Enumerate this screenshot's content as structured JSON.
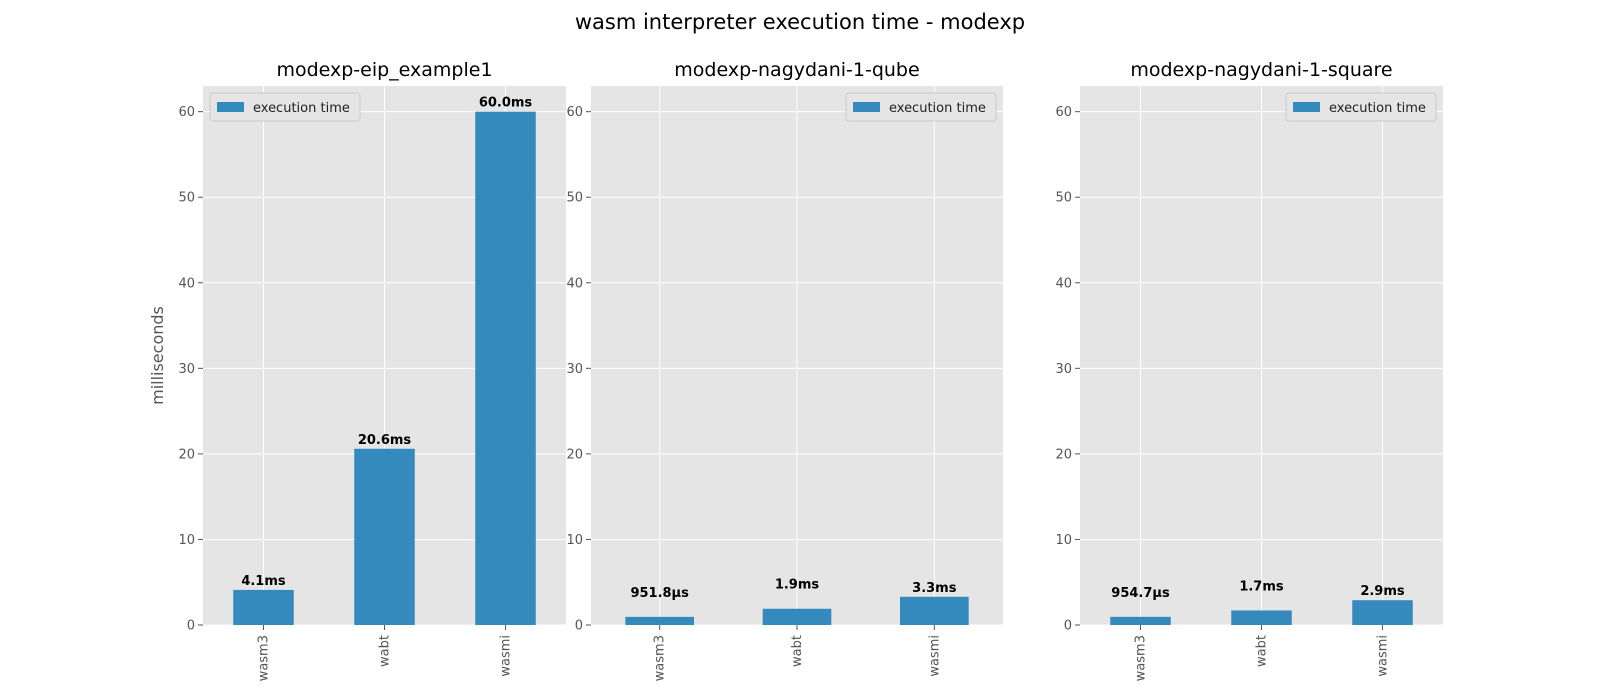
{
  "figure": {
    "title": "wasm interpreter execution time - modexp"
  },
  "style": {
    "bar_color": "#348ABD",
    "panel_bg": "#E5E5E5",
    "grid_color": "#FFFFFF",
    "tick_color": "#555555"
  },
  "chart_data": [
    {
      "type": "bar",
      "title": "modexp-eip_example1",
      "ylabel": "milliseconds",
      "xlabel": "",
      "categories": [
        "wasm3",
        "wabt",
        "wasmi"
      ],
      "series": [
        {
          "name": "execution time",
          "values": [
            4.1,
            20.6,
            60.0
          ]
        }
      ],
      "value_labels": [
        "4.1ms",
        "20.6ms",
        "60.0ms"
      ],
      "ylim": [
        0,
        63
      ],
      "yticks": [
        0,
        10,
        20,
        30,
        40,
        50,
        60
      ],
      "grid": true,
      "legend_position": "top-left"
    },
    {
      "type": "bar",
      "title": "modexp-nagydani-1-qube",
      "ylabel": "",
      "xlabel": "",
      "categories": [
        "wasm3",
        "wabt",
        "wasmi"
      ],
      "series": [
        {
          "name": "execution time",
          "values": [
            0.9518,
            1.9,
            3.3
          ]
        }
      ],
      "value_labels": [
        "951.8µs",
        "1.9ms",
        "3.3ms"
      ],
      "ylim": [
        0,
        63
      ],
      "yticks": [
        0,
        10,
        20,
        30,
        40,
        50,
        60
      ],
      "grid": true,
      "legend_position": "top-right"
    },
    {
      "type": "bar",
      "title": "modexp-nagydani-1-square",
      "ylabel": "",
      "xlabel": "",
      "categories": [
        "wasm3",
        "wabt",
        "wasmi"
      ],
      "series": [
        {
          "name": "execution time",
          "values": [
            0.9547,
            1.7,
            2.9
          ]
        }
      ],
      "value_labels": [
        "954.7µs",
        "1.7ms",
        "2.9ms"
      ],
      "ylim": [
        0,
        63
      ],
      "yticks": [
        0,
        10,
        20,
        30,
        40,
        50,
        60
      ],
      "grid": true,
      "legend_position": "top-right"
    }
  ]
}
